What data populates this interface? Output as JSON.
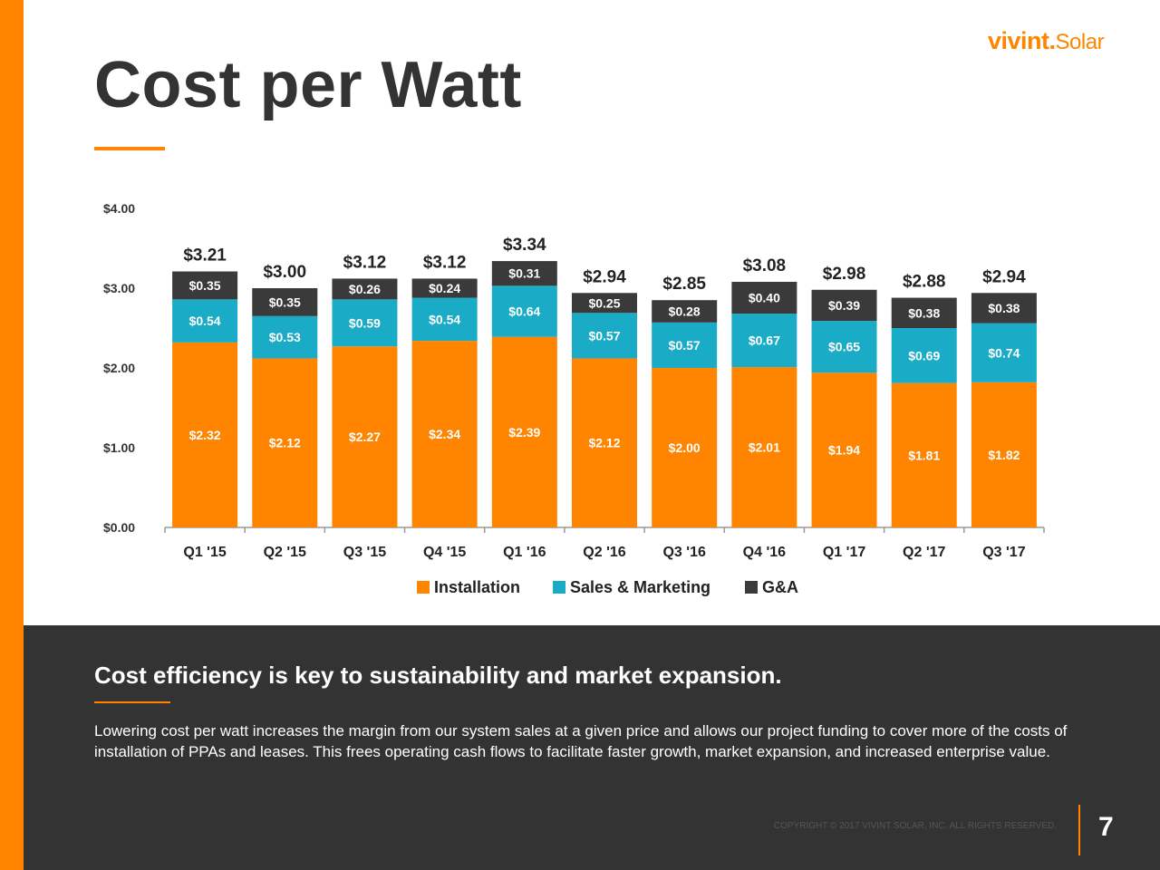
{
  "header": {
    "logo_bold": "vivint",
    "logo_dot": ".",
    "logo_light": "Solar",
    "title": "Cost per Watt"
  },
  "colors": {
    "accent": "#ff8500",
    "installation": "#ff8500",
    "sales_marketing": "#1aacc6",
    "ga": "#3a3a3a",
    "dark_panel": "#333333"
  },
  "chart_data": {
    "type": "bar",
    "stacked": true,
    "categories": [
      "Q1 '15",
      "Q2 '15",
      "Q3 '15",
      "Q4 '15",
      "Q1 '16",
      "Q2 '16",
      "Q3 '16",
      "Q4 '16",
      "Q1 '17",
      "Q2 '17",
      "Q3 '17"
    ],
    "series": [
      {
        "name": "Installation",
        "color": "#ff8500",
        "values": [
          2.32,
          2.12,
          2.27,
          2.34,
          2.39,
          2.12,
          2.0,
          2.01,
          1.94,
          1.81,
          1.82
        ],
        "labels": [
          "$2.32",
          "$2.12",
          "$2.27",
          "$2.34",
          "$2.39",
          "$2.12",
          "$2.00",
          "$2.01",
          "$1.94",
          "$1.81",
          "$1.82"
        ]
      },
      {
        "name": "Sales & Marketing",
        "color": "#1aacc6",
        "values": [
          0.54,
          0.53,
          0.59,
          0.54,
          0.64,
          0.57,
          0.57,
          0.67,
          0.65,
          0.69,
          0.74
        ],
        "labels": [
          "$0.54",
          "$0.53",
          "$0.59",
          "$0.54",
          "$0.64",
          "$0.57",
          "$0.57",
          "$0.67",
          "$0.65",
          "$0.69",
          "$0.74"
        ]
      },
      {
        "name": "G&A",
        "color": "#3a3a3a",
        "values": [
          0.35,
          0.35,
          0.26,
          0.24,
          0.31,
          0.25,
          0.28,
          0.4,
          0.39,
          0.38,
          0.38
        ],
        "labels": [
          "$0.35",
          "$0.35",
          "$0.26",
          "$0.24",
          "$0.31",
          "$0.25",
          "$0.28",
          "$0.40",
          "$0.39",
          "$0.38",
          "$0.38"
        ]
      }
    ],
    "totals": [
      3.21,
      3.0,
      3.12,
      3.12,
      3.34,
      2.94,
      2.85,
      3.08,
      2.98,
      2.88,
      2.94
    ],
    "total_labels": [
      "$3.21",
      "$3.00",
      "$3.12",
      "$3.12",
      "$3.34",
      "$2.94",
      "$2.85",
      "$3.08",
      "$2.98",
      "$2.88",
      "$2.94"
    ],
    "yticks": [
      0,
      1,
      2,
      3,
      4
    ],
    "ytick_labels": [
      "$0.00",
      "$1.00",
      "$2.00",
      "$3.00",
      "$4.00"
    ],
    "ylim": [
      0,
      4
    ],
    "legend_position": "bottom",
    "grid": false
  },
  "footer": {
    "headline": "Cost efficiency is key to sustainability and market expansion.",
    "body": "Lowering cost per watt increases the margin from our system sales at a given price and allows our project funding to cover more of the costs of installation of PPAs and leases. This frees operating cash flows to facilitate faster growth, market expansion, and increased enterprise value.",
    "copyright": "COPYRIGHT © 2017 VIVINT SOLAR, INC. ALL RIGHTS RESERVED.",
    "page_number": "7"
  }
}
